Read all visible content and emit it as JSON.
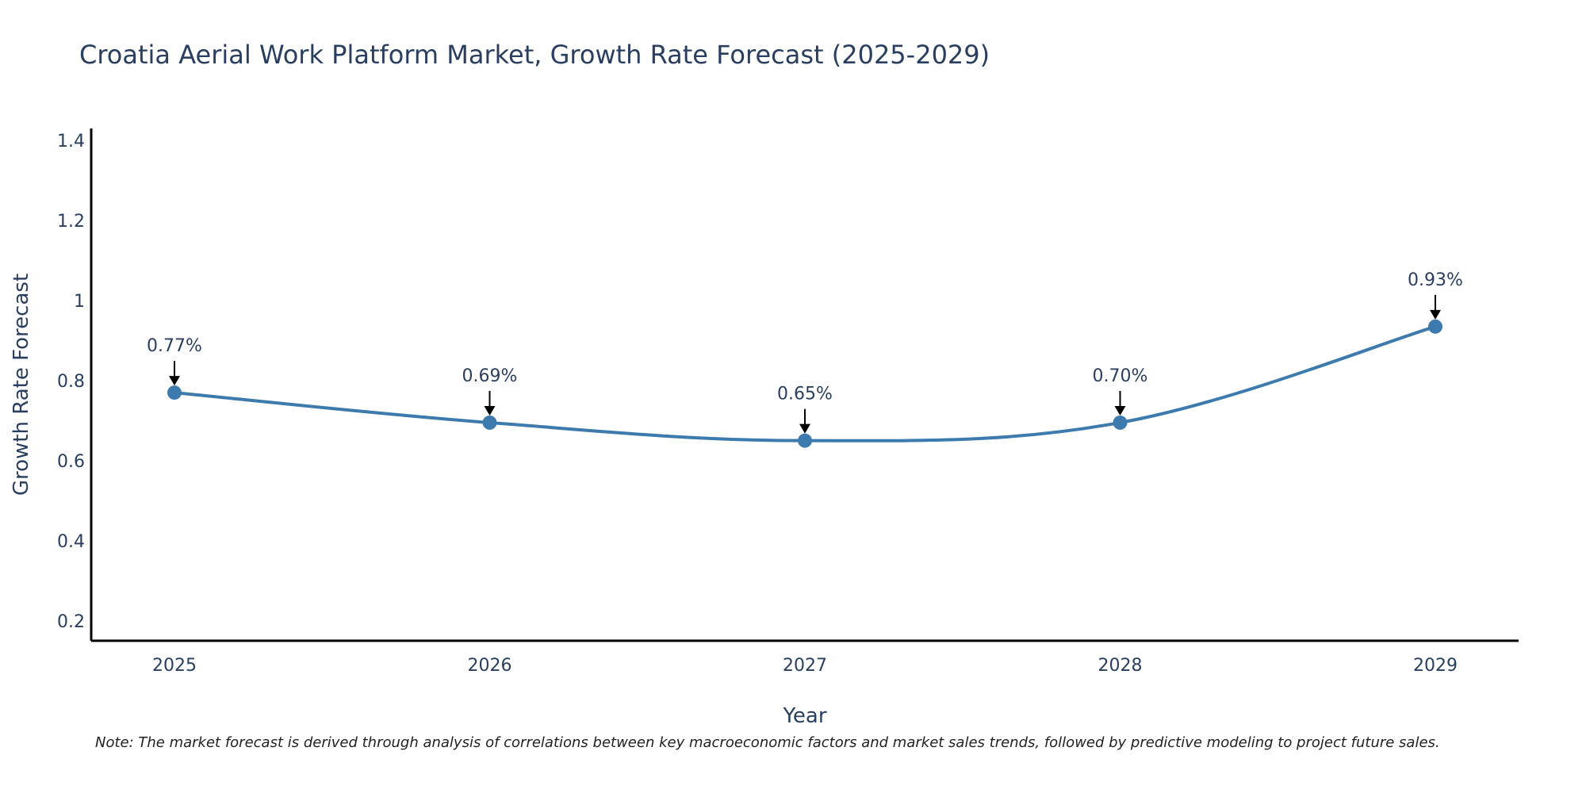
{
  "chart_data": {
    "type": "line",
    "title": "Croatia Aerial Work Platform Market, Growth Rate Forecast (2025-2029)",
    "xlabel": "Year",
    "ylabel": "Growth Rate Forecast",
    "categories": [
      "2025",
      "2026",
      "2027",
      "2028",
      "2029"
    ],
    "series": [
      {
        "name": "Growth Rate Forecast",
        "values": [
          0.77,
          0.695,
          0.65,
          0.695,
          0.935
        ],
        "labels": [
          "0.77%",
          "0.69%",
          "0.65%",
          "0.70%",
          "0.93%"
        ]
      }
    ],
    "ylim": [
      0.15,
      1.43
    ],
    "yticks": [
      0.2,
      0.4,
      0.6,
      0.8,
      1,
      1.2,
      1.4
    ],
    "ytick_labels": [
      "0.2",
      "0.4",
      "0.6",
      "0.8",
      "1",
      "1.2",
      "1.4"
    ],
    "grid": false,
    "line_color": "#3d7aad",
    "axis_color": "#000000",
    "note": "Note: The market forecast is derived through analysis of correlations between key macroeconomic factors and market sales trends, followed by predictive modeling to project future sales."
  }
}
